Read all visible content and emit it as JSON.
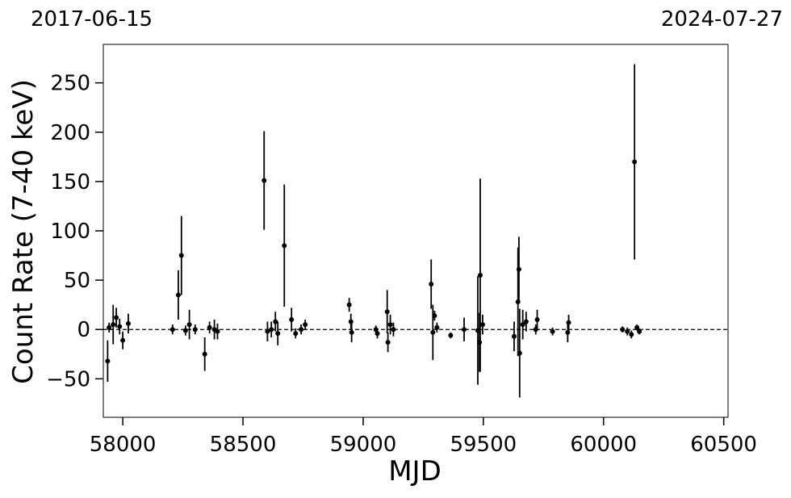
{
  "chart_data": {
    "type": "errorbar",
    "date_start": "2017-06-15",
    "date_end": "2024-07-27",
    "xlabel": "MJD",
    "ylabel": "Count Rate (7-40 keV)",
    "xlim": [
      57919,
      60518
    ],
    "ylim": [
      -89,
      289
    ],
    "xticks": [
      58000,
      58500,
      59000,
      59500,
      60000,
      60500
    ],
    "yticks": [
      {
        "value": -50,
        "label": "−50"
      },
      0,
      50,
      100,
      150,
      200,
      250
    ],
    "color": "#000000",
    "series": [
      {
        "x": [
          57937,
          57943,
          57960,
          57973,
          57987,
          58000,
          58023,
          58207,
          58231,
          58244,
          58261,
          58277,
          58301,
          58341,
          58361,
          58381,
          58394,
          58588,
          58602,
          58618,
          58635,
          58645,
          58672,
          58702,
          58719,
          58742,
          58759,
          58942,
          58949,
          58952,
          59053,
          59059,
          59100,
          59103,
          59113,
          59126,
          59283,
          59290,
          59297,
          59307,
          59364,
          59420,
          59477,
          59484,
          59487,
          59497,
          59628,
          59644,
          59648,
          59651,
          59664,
          59678,
          59718,
          59724,
          59788,
          59851,
          59855,
          60079,
          60099,
          60116,
          60129,
          60139,
          60149
        ],
        "values": [
          -32,
          2,
          5,
          12,
          3,
          -11,
          6,
          0,
          35,
          75,
          -1,
          5,
          0,
          -25,
          2,
          0,
          -2,
          151,
          -2,
          0,
          8,
          -4,
          85,
          10,
          -4,
          0,
          5,
          25,
          8,
          -3,
          0,
          -4,
          18,
          -13,
          5,
          0,
          46,
          -3,
          14,
          2,
          -6,
          0,
          -1,
          -13,
          55,
          5,
          -7,
          28,
          61,
          -24,
          5,
          8,
          0,
          10,
          -2,
          -3,
          7,
          0,
          -2,
          -5,
          170,
          2,
          -2
        ],
        "errors": [
          21,
          5,
          20,
          10,
          8,
          9,
          10,
          5,
          25,
          40,
          5,
          15,
          5,
          17,
          6,
          10,
          8,
          50,
          10,
          8,
          10,
          12,
          62,
          12,
          5,
          5,
          5,
          7,
          8,
          10,
          4,
          5,
          22,
          10,
          10,
          7,
          25,
          28,
          5,
          5,
          3,
          12,
          55,
          30,
          98,
          10,
          15,
          55,
          33,
          45,
          15,
          10,
          5,
          10,
          4,
          10,
          8,
          3,
          4,
          4,
          99,
          3,
          3
        ]
      }
    ]
  }
}
